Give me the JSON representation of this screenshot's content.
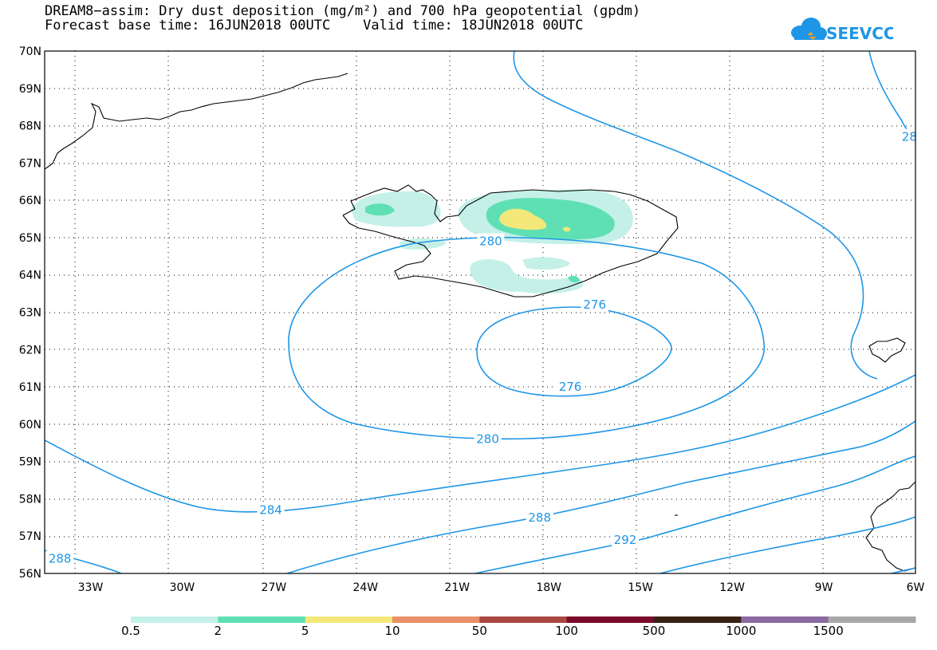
{
  "header": {
    "title_line1": "DREAM8−assim: Dry dust deposition (mg/m²) and 700 hPa geopotential (gpdm)",
    "title_line2": "Forecast base time: 16JUN2018 00UTC    Valid time: 18JUN2018 00UTC"
  },
  "logo": {
    "text": "SEEVCCC",
    "icon": "cloud-logo-icon",
    "color": "#1e96e6"
  },
  "map": {
    "lat_labels": [
      "70N",
      "69N",
      "68N",
      "67N",
      "66N",
      "65N",
      "64N",
      "63N",
      "62N",
      "61N",
      "60N",
      "59N",
      "58N",
      "57N",
      "56N"
    ],
    "lat_range": [
      56,
      70
    ],
    "lon_labels": [
      "33W",
      "30W",
      "27W",
      "24W",
      "21W",
      "18W",
      "15W",
      "12W",
      "9W",
      "6W"
    ],
    "lon_range": [
      -34.5,
      -6
    ],
    "grid": true,
    "contour_color": "#1e96e6",
    "contour_labels": [
      {
        "text": "280",
        "lon": -19.9,
        "lat": 64.9
      },
      {
        "text": "276",
        "lon": -16.5,
        "lat": 63.2
      },
      {
        "text": "276",
        "lon": -17.3,
        "lat": 61.0
      },
      {
        "text": "280",
        "lon": -20.0,
        "lat": 59.6
      },
      {
        "text": "284",
        "lon": -27.1,
        "lat": 57.7
      },
      {
        "text": "288",
        "lon": -18.3,
        "lat": 57.5
      },
      {
        "text": "292",
        "lon": -15.5,
        "lat": 56.9
      },
      {
        "text": "288",
        "lon": -34.0,
        "lat": 56.4
      },
      {
        "text": "28",
        "lon": -6.2,
        "lat": 67.7
      }
    ]
  },
  "colorbar": {
    "labels": [
      "0.5",
      "2",
      "5",
      "10",
      "50",
      "100",
      "500",
      "1000",
      "1500"
    ],
    "colors": [
      "#c4f0e8",
      "#5fe0b4",
      "#f4e87a",
      "#e8916a",
      "#a84840",
      "#7a0a28",
      "#3a2014",
      "#8a6aa0",
      "#a8a8a8"
    ]
  }
}
